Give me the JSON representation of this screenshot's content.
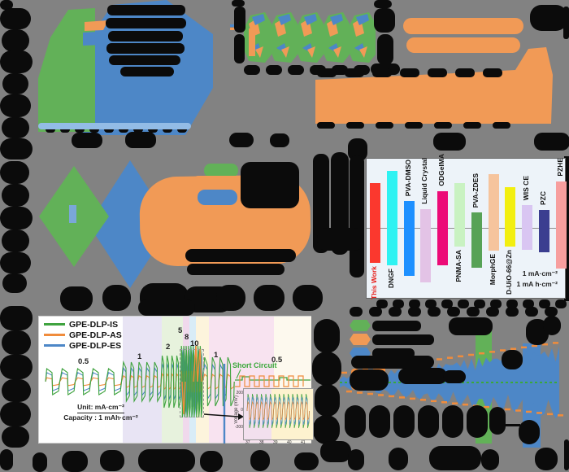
{
  "chart_data": [
    {
      "type": "bar",
      "title": "",
      "categories": [
        "This Work",
        "DNGF",
        "PVA-DMSO",
        "Liquid Crystal",
        "ODGelMA",
        "PNMA-SA",
        "PVA-ZDES",
        "MorphGE",
        "D-UiO-66@Zn",
        "WIS CE",
        "PZC",
        "PZHE"
      ],
      "series": [
        {
          "name": "extent_above_reference_pct",
          "values": [
            32,
            40.7,
            19.2,
            13.4,
            26.2,
            32,
            11,
            38.4,
            29.1,
            16.3,
            12.8,
            33.1
          ]
        },
        {
          "name": "extent_below_reference_pct",
          "values": [
            25,
            26.7,
            34.3,
            39,
            26.7,
            13.4,
            28.5,
            16.3,
            13.4,
            15.7,
            17.4,
            29.1
          ]
        }
      ],
      "bar_colors": [
        "#fb382e",
        "#2ef2f2",
        "#1e90ff",
        "#e3c3e6",
        "#ec0b77",
        "#c9f2c2",
        "#57a256",
        "#f6c49d",
        "#f2ef10",
        "#d9c6f2",
        "#3b3e90",
        "#f79e9e"
      ],
      "label_sides": [
        "bottom",
        "bottom",
        "top",
        "top",
        "top",
        "bottom",
        "top",
        "bottom",
        "bottom",
        "top",
        "top",
        "top"
      ],
      "highlight_category": "This Work",
      "highlight_color": "#e8211d",
      "annotations": [
        "1 mA·cm⁻²",
        "1 mA h·cm⁻²"
      ],
      "axis_labels_illegible": true,
      "legend_position": "none",
      "grid": false
    },
    {
      "type": "line",
      "title": "",
      "legend": [
        "GPE-DLP-IS",
        "GPE-DLP-AS",
        "GPE-DLP-ES"
      ],
      "legend_colors": [
        "#3fa33f",
        "#f08c3c",
        "#4d87c7"
      ],
      "rate_labels": [
        "0.5",
        "1",
        "2",
        "5",
        "8",
        "10",
        "1",
        "0.5"
      ],
      "annotations": {
        "short_circuit": "Short Circuit",
        "unit": "Unit: mA·cm⁻²",
        "capacity": "Capacity : 1 mAh·cm⁻²"
      },
      "inset": {
        "ylabel": "Voltage (mV)",
        "yticks": [
          "200",
          "0",
          "-200"
        ],
        "xticks": [
          "37",
          "38",
          "39",
          "40",
          "41"
        ]
      },
      "legend_position": "top-left",
      "grid": false
    }
  ]
}
